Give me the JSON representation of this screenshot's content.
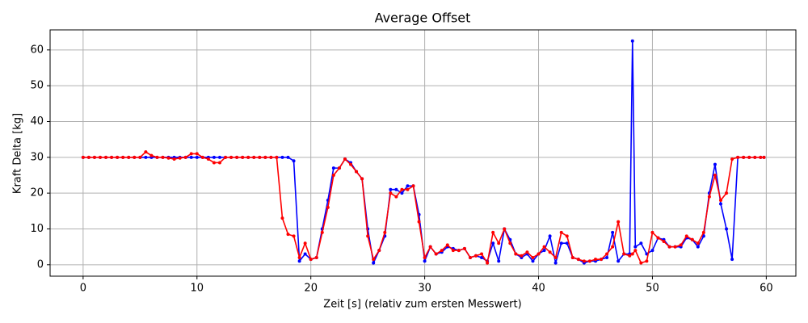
{
  "chart_data": {
    "type": "line",
    "title": "Average Offset",
    "xlabel": "Zeit [s] (relativ zum ersten Messwert)",
    "ylabel": "Kraft Delta [kg]",
    "x": [
      0,
      0.5,
      1,
      1.5,
      2,
      2.5,
      3,
      3.5,
      4,
      4.5,
      5,
      5.5,
      6,
      6.5,
      7,
      7.5,
      8,
      8.5,
      9,
      9.5,
      10,
      10.5,
      11,
      11.5,
      12,
      12.5,
      13,
      13.5,
      14,
      14.5,
      15,
      15.5,
      16,
      16.5,
      17,
      17.5,
      18,
      18.5,
      19,
      19.5,
      20,
      20.5,
      21,
      21.5,
      22,
      22.5,
      23,
      23.5,
      24,
      24.5,
      25,
      25.5,
      26,
      26.5,
      27,
      27.5,
      28,
      28.5,
      29,
      29.5,
      30,
      30.5,
      31,
      31.5,
      32,
      32.5,
      33,
      33.5,
      34,
      34.5,
      35,
      35.5,
      36,
      36.5,
      37,
      37.5,
      38,
      38.5,
      39,
      39.5,
      40,
      40.5,
      41,
      41.5,
      42,
      42.5,
      43,
      43.5,
      44,
      44.5,
      45,
      45.5,
      46,
      46.5,
      47,
      47.5,
      48,
      48.25,
      48.5,
      49,
      49.5,
      50,
      50.5,
      51,
      51.5,
      52,
      52.5,
      53,
      53.5,
      54,
      54.5,
      55,
      55.5,
      56,
      56.5,
      57,
      57.5,
      58,
      58.5,
      59,
      59.5,
      59.8
    ],
    "series": [
      {
        "color": "#0000ff",
        "values": [
          30,
          30,
          30,
          30,
          30,
          30,
          30,
          30,
          30,
          30,
          30,
          30,
          30,
          30,
          30,
          30,
          30,
          30,
          30,
          30,
          30,
          30,
          30,
          30,
          30,
          30,
          30,
          30,
          30,
          30,
          30,
          30,
          30,
          30,
          30,
          30,
          30,
          29,
          1,
          3,
          1.5,
          2,
          10,
          18,
          27,
          27,
          29.5,
          28.5,
          26,
          24,
          10,
          0.5,
          4,
          8,
          21,
          21,
          20,
          22,
          22,
          14,
          1,
          5,
          3,
          3.5,
          5,
          4.5,
          4,
          4.5,
          2,
          2.5,
          2,
          1,
          6,
          1,
          10,
          7,
          3,
          2,
          3,
          1,
          3,
          4,
          8,
          0.5,
          6,
          6,
          2,
          1.5,
          0.5,
          1,
          1,
          1.5,
          2,
          9,
          1,
          3,
          3,
          62.5,
          5,
          6,
          3,
          4,
          7.5,
          7,
          5,
          5,
          5,
          7.5,
          7,
          5,
          8,
          20,
          28,
          17,
          10,
          1.5,
          30,
          30,
          30,
          30,
          30,
          30
        ]
      },
      {
        "color": "#ff0000",
        "values": [
          30,
          30,
          30,
          30,
          30,
          30,
          30,
          30,
          30,
          30,
          30,
          31.5,
          30.5,
          30,
          30,
          29.8,
          29.5,
          29.8,
          30,
          31,
          31,
          30,
          29.5,
          28.5,
          28.5,
          30,
          30,
          30,
          30,
          30,
          30,
          30,
          30,
          30,
          30,
          13,
          8.5,
          8,
          2,
          6,
          1.5,
          2,
          9,
          16,
          25,
          27,
          29.5,
          28,
          26,
          24,
          8,
          1.5,
          4,
          9,
          20,
          19,
          21,
          21,
          22,
          12,
          2,
          5,
          3,
          4,
          5.5,
          4,
          4,
          4.5,
          2,
          2.5,
          3,
          0.5,
          9,
          6,
          10,
          6,
          3,
          2.5,
          3.5,
          2,
          3,
          5,
          3.5,
          2,
          9,
          8,
          2,
          1.5,
          1,
          1,
          1.5,
          1.5,
          3,
          5,
          12,
          3,
          2.5,
          3,
          4,
          0.5,
          1,
          9,
          7.5,
          6.5,
          5,
          5,
          5.5,
          8,
          7,
          6,
          9,
          19,
          25,
          18,
          20,
          29.5,
          30,
          30,
          30,
          30,
          30,
          30
        ]
      }
    ],
    "xlim": [
      -2.9,
      62.6
    ],
    "xticks": [
      0,
      10,
      20,
      30,
      40,
      50,
      60
    ],
    "ylim": [
      -3.2,
      65.6
    ],
    "yticks": [
      0,
      10,
      20,
      30,
      40,
      50,
      60
    ],
    "grid": true
  }
}
